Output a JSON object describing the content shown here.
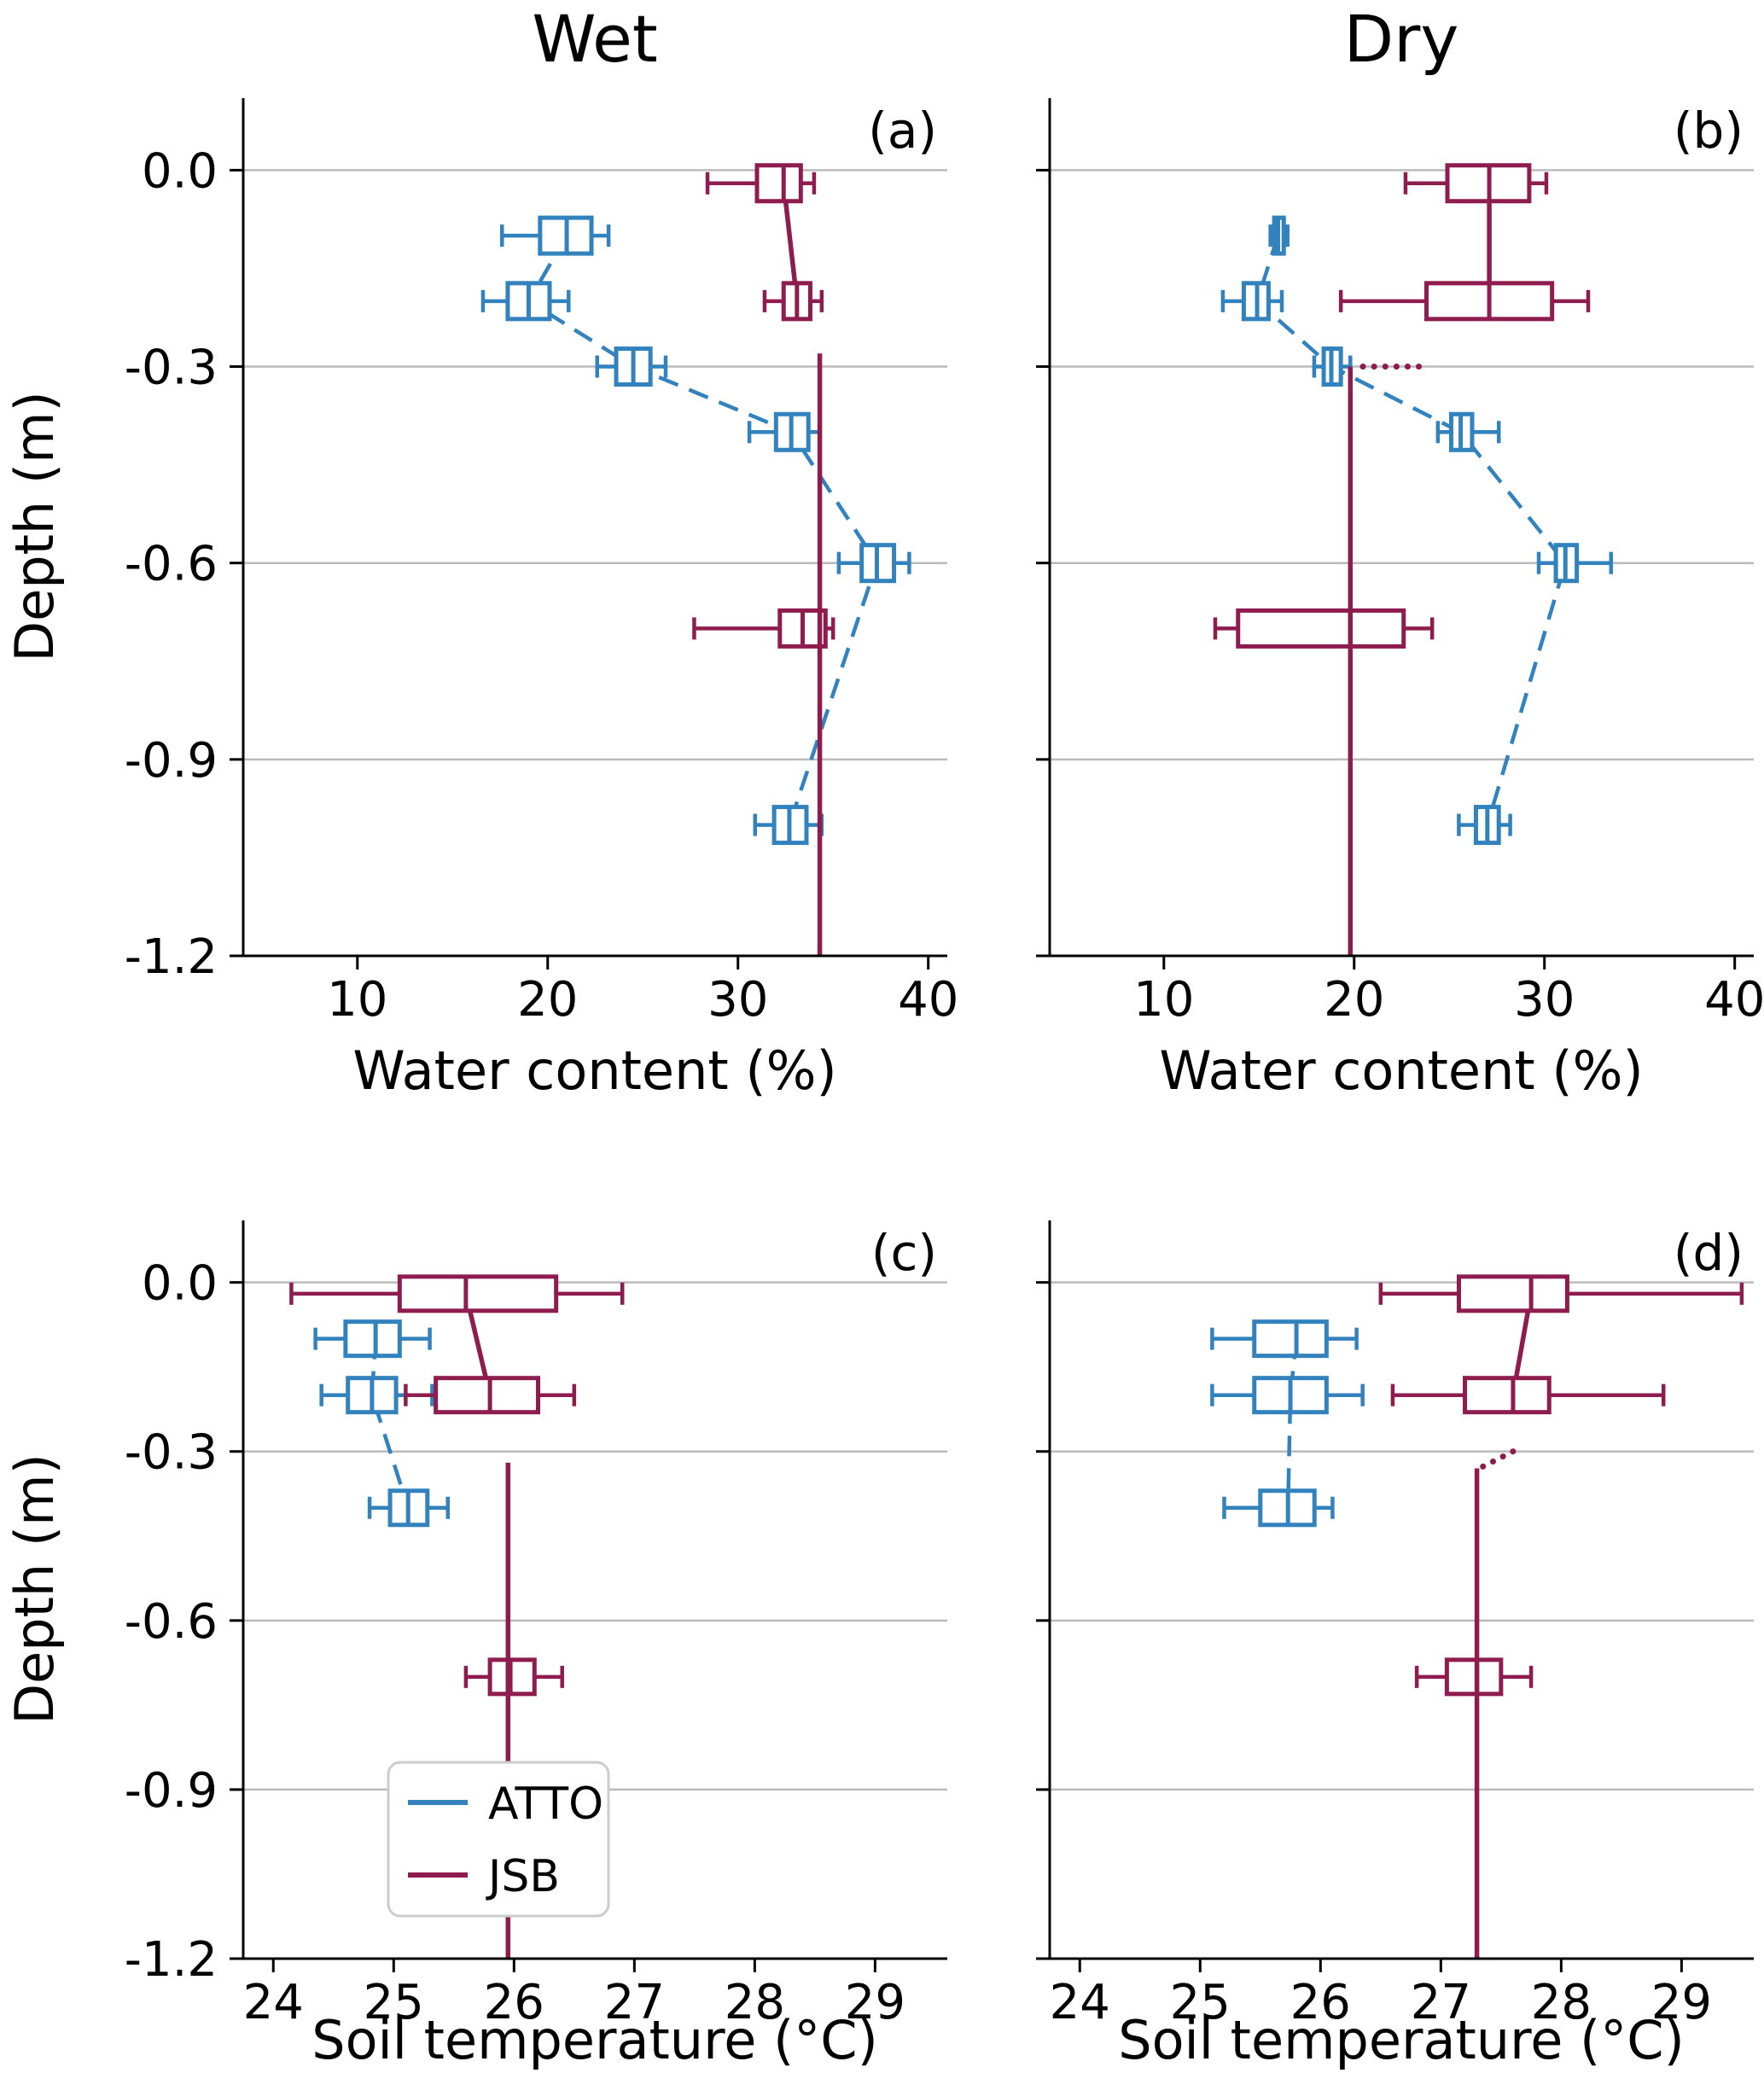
{
  "figure": {
    "background": "#ffffff",
    "column_titles": [
      "Wet",
      "Dry"
    ]
  },
  "series_colors": {
    "ATTO": "#3182bd",
    "JSB": "#8e1c4f"
  },
  "legend": {
    "entries": [
      {
        "label": "ATTO"
      },
      {
        "label": "JSB"
      }
    ]
  },
  "chart_data": [
    {
      "panel": "a",
      "panel_label": "(a)",
      "type": "boxplot-horizontal",
      "column_title": "Wet",
      "xlabel": "Water content (%)",
      "ylabel": "Depth (m)",
      "xlim": [
        4,
        41
      ],
      "xticks": [
        10,
        20,
        30,
        40
      ],
      "ylim": [
        0.11,
        -1.2
      ],
      "yticks": [
        0,
        -0.3,
        -0.6,
        -0.9,
        -1.2
      ],
      "series": [
        {
          "name": "ATTO",
          "boxes": [
            {
              "depth": -0.1,
              "lo": 17.6,
              "q1": 19.6,
              "med": 21.0,
              "q3": 22.3,
              "hi": 23.2
            },
            {
              "depth": -0.2,
              "lo": 16.6,
              "q1": 17.9,
              "med": 19.0,
              "q3": 20.1,
              "hi": 21.1
            },
            {
              "depth": -0.3,
              "lo": 22.6,
              "q1": 23.6,
              "med": 24.5,
              "q3": 25.4,
              "hi": 26.2
            },
            {
              "depth": -0.4,
              "lo": 30.6,
              "q1": 32.0,
              "med": 32.8,
              "q3": 33.7,
              "hi": 34.3
            },
            {
              "depth": -0.6,
              "lo": 35.3,
              "q1": 36.5,
              "med": 37.3,
              "q3": 38.2,
              "hi": 39.0
            },
            {
              "depth": -1.0,
              "lo": 30.9,
              "q1": 31.9,
              "med": 32.7,
              "q3": 33.6,
              "hi": 34.4
            }
          ],
          "lines": [
            {
              "style": "dashed",
              "layer": "under",
              "points": [
                [
                  21.0,
                  -0.1
                ],
                [
                  19.0,
                  -0.2
                ],
                [
                  24.5,
                  -0.3
                ],
                [
                  32.8,
                  -0.4
                ],
                [
                  37.3,
                  -0.6
                ],
                [
                  32.7,
                  -1.0
                ]
              ]
            }
          ]
        },
        {
          "name": "JSB",
          "boxes": [
            {
              "depth": -0.02,
              "lo": 28.4,
              "q1": 31.0,
              "med": 32.4,
              "q3": 33.3,
              "hi": 34.0
            },
            {
              "depth": -0.2,
              "lo": 31.4,
              "q1": 32.4,
              "med": 33.1,
              "q3": 33.8,
              "hi": 34.4
            },
            {
              "depth": -0.7,
              "lo": 27.7,
              "q1": 32.2,
              "med": 33.4,
              "q3": 34.6,
              "hi": 35.0
            }
          ],
          "lines": [
            {
              "style": "solid",
              "layer": "under",
              "points": [
                [
                  32.4,
                  -0.02
                ],
                [
                  33.1,
                  -0.2
                ]
              ]
            },
            {
              "style": "solid",
              "layer": "over",
              "points": [
                [
                  34.3,
                  -0.28
                ],
                [
                  34.3,
                  -1.2
                ]
              ]
            }
          ]
        }
      ]
    },
    {
      "panel": "b",
      "panel_label": "(b)",
      "type": "boxplot-horizontal",
      "column_title": "Dry",
      "xlabel": "Water content (%)",
      "ylabel": "Depth (m)",
      "xlim": [
        4,
        41
      ],
      "xticks": [
        10,
        20,
        30,
        40
      ],
      "ylim": [
        0.11,
        -1.2
      ],
      "yticks": [
        0,
        -0.3,
        -0.6,
        -0.9,
        -1.2
      ],
      "series": [
        {
          "name": "ATTO",
          "boxes": [
            {
              "depth": -0.1,
              "lo": 15.6,
              "q1": 15.8,
              "med": 16.0,
              "q3": 16.3,
              "hi": 16.5
            },
            {
              "depth": -0.2,
              "lo": 13.1,
              "q1": 14.2,
              "med": 14.9,
              "q3": 15.5,
              "hi": 16.2
            },
            {
              "depth": -0.3,
              "lo": 17.9,
              "q1": 18.4,
              "med": 18.8,
              "q3": 19.3,
              "hi": 19.8
            },
            {
              "depth": -0.4,
              "lo": 24.4,
              "q1": 25.1,
              "med": 25.6,
              "q3": 26.2,
              "hi": 27.6
            },
            {
              "depth": -0.6,
              "lo": 29.7,
              "q1": 30.6,
              "med": 31.1,
              "q3": 31.7,
              "hi": 33.5
            },
            {
              "depth": -1.0,
              "lo": 25.5,
              "q1": 26.4,
              "med": 27.0,
              "q3": 27.6,
              "hi": 28.2
            }
          ],
          "lines": [
            {
              "style": "dashed",
              "layer": "under",
              "points": [
                [
                  16.0,
                  -0.1
                ],
                [
                  14.9,
                  -0.2
                ],
                [
                  18.8,
                  -0.3
                ],
                [
                  25.6,
                  -0.4
                ],
                [
                  31.1,
                  -0.6
                ],
                [
                  27.0,
                  -1.0
                ]
              ]
            }
          ]
        },
        {
          "name": "JSB",
          "boxes": [
            {
              "depth": -0.02,
              "lo": 22.7,
              "q1": 24.9,
              "med": 27.1,
              "q3": 29.2,
              "hi": 30.1
            },
            {
              "depth": -0.2,
              "lo": 19.3,
              "q1": 23.8,
              "med": 27.1,
              "q3": 30.4,
              "hi": 32.3
            },
            {
              "depth": -0.7,
              "lo": 12.7,
              "q1": 13.9,
              "med": 19.8,
              "q3": 22.6,
              "hi": 24.1
            }
          ],
          "lines": [
            {
              "style": "solid",
              "layer": "under",
              "points": [
                [
                  27.1,
                  -0.02
                ],
                [
                  27.1,
                  -0.2
                ]
              ]
            },
            {
              "style": "dotted",
              "layer": "over",
              "points": [
                [
                  23.4,
                  -0.3
                ],
                [
                  19.9,
                  -0.3
                ]
              ]
            },
            {
              "style": "solid",
              "layer": "over",
              "points": [
                [
                  19.8,
                  -0.3
                ],
                [
                  19.8,
                  -1.2
                ]
              ]
            }
          ]
        }
      ]
    },
    {
      "panel": "c",
      "panel_label": "(c)",
      "type": "boxplot-horizontal",
      "xlabel": "Soil temperature (°C)",
      "ylabel": "Depth (m)",
      "xlim": [
        23.75,
        29.6
      ],
      "xticks": [
        24,
        25,
        26,
        27,
        28,
        29
      ],
      "ylim": [
        0.11,
        -1.2
      ],
      "yticks": [
        0,
        -0.3,
        -0.6,
        -0.9,
        -1.2
      ],
      "series": [
        {
          "name": "ATTO",
          "boxes": [
            {
              "depth": -0.1,
              "lo": 24.35,
              "q1": 24.6,
              "med": 24.85,
              "q3": 25.05,
              "hi": 25.3
            },
            {
              "depth": -0.2,
              "lo": 24.4,
              "q1": 24.62,
              "med": 24.82,
              "q3": 25.02,
              "hi": 25.32
            },
            {
              "depth": -0.4,
              "lo": 24.8,
              "q1": 24.97,
              "med": 25.12,
              "q3": 25.28,
              "hi": 25.45
            }
          ],
          "lines": [
            {
              "style": "dashed",
              "layer": "under",
              "points": [
                [
                  24.85,
                  -0.1
                ],
                [
                  24.82,
                  -0.2
                ],
                [
                  25.12,
                  -0.4
                ]
              ]
            }
          ]
        },
        {
          "name": "JSB",
          "boxes": [
            {
              "depth": -0.02,
              "lo": 24.15,
              "q1": 25.05,
              "med": 25.6,
              "q3": 26.35,
              "hi": 26.9
            },
            {
              "depth": -0.2,
              "lo": 25.1,
              "q1": 25.35,
              "med": 25.8,
              "q3": 26.2,
              "hi": 26.5
            },
            {
              "depth": -0.7,
              "lo": 25.6,
              "q1": 25.8,
              "med": 25.97,
              "q3": 26.17,
              "hi": 26.4
            }
          ],
          "lines": [
            {
              "style": "solid",
              "layer": "under",
              "points": [
                [
                  25.6,
                  -0.02
                ],
                [
                  25.8,
                  -0.2
                ]
              ]
            },
            {
              "style": "solid",
              "layer": "over",
              "points": [
                [
                  25.95,
                  -0.32
                ],
                [
                  25.95,
                  -1.2
                ]
              ]
            }
          ]
        }
      ]
    },
    {
      "panel": "d",
      "panel_label": "(d)",
      "type": "boxplot-horizontal",
      "xlabel": "Soil temperature (°C)",
      "ylabel": "Depth (m)",
      "xlim": [
        23.75,
        29.6
      ],
      "xticks": [
        24,
        25,
        26,
        27,
        28,
        29
      ],
      "ylim": [
        0.11,
        -1.2
      ],
      "yticks": [
        0,
        -0.3,
        -0.6,
        -0.9,
        -1.2
      ],
      "series": [
        {
          "name": "ATTO",
          "boxes": [
            {
              "depth": -0.1,
              "lo": 25.1,
              "q1": 25.45,
              "med": 25.8,
              "q3": 26.05,
              "hi": 26.3
            },
            {
              "depth": -0.2,
              "lo": 25.1,
              "q1": 25.45,
              "med": 25.75,
              "q3": 26.05,
              "hi": 26.35
            },
            {
              "depth": -0.4,
              "lo": 25.2,
              "q1": 25.5,
              "med": 25.73,
              "q3": 25.95,
              "hi": 26.1
            }
          ],
          "lines": [
            {
              "style": "dashed",
              "layer": "under",
              "points": [
                [
                  25.8,
                  -0.1
                ],
                [
                  25.75,
                  -0.2
                ],
                [
                  25.73,
                  -0.4
                ]
              ]
            }
          ]
        },
        {
          "name": "JSB",
          "boxes": [
            {
              "depth": -0.02,
              "lo": 26.5,
              "q1": 27.15,
              "med": 27.75,
              "q3": 28.05,
              "hi": 29.5
            },
            {
              "depth": -0.2,
              "lo": 26.6,
              "q1": 27.2,
              "med": 27.6,
              "q3": 27.9,
              "hi": 28.85
            },
            {
              "depth": -0.7,
              "lo": 26.8,
              "q1": 27.05,
              "med": 27.3,
              "q3": 27.5,
              "hi": 27.75
            }
          ],
          "lines": [
            {
              "style": "solid",
              "layer": "under",
              "points": [
                [
                  27.75,
                  -0.02
                ],
                [
                  27.6,
                  -0.2
                ]
              ]
            },
            {
              "style": "dotted",
              "layer": "over",
              "points": [
                [
                  27.6,
                  -0.3
                ],
                [
                  27.32,
                  -0.33
                ]
              ]
            },
            {
              "style": "solid",
              "layer": "over",
              "points": [
                [
                  27.3,
                  -0.33
                ],
                [
                  27.3,
                  -1.2
                ]
              ]
            }
          ]
        }
      ]
    }
  ]
}
